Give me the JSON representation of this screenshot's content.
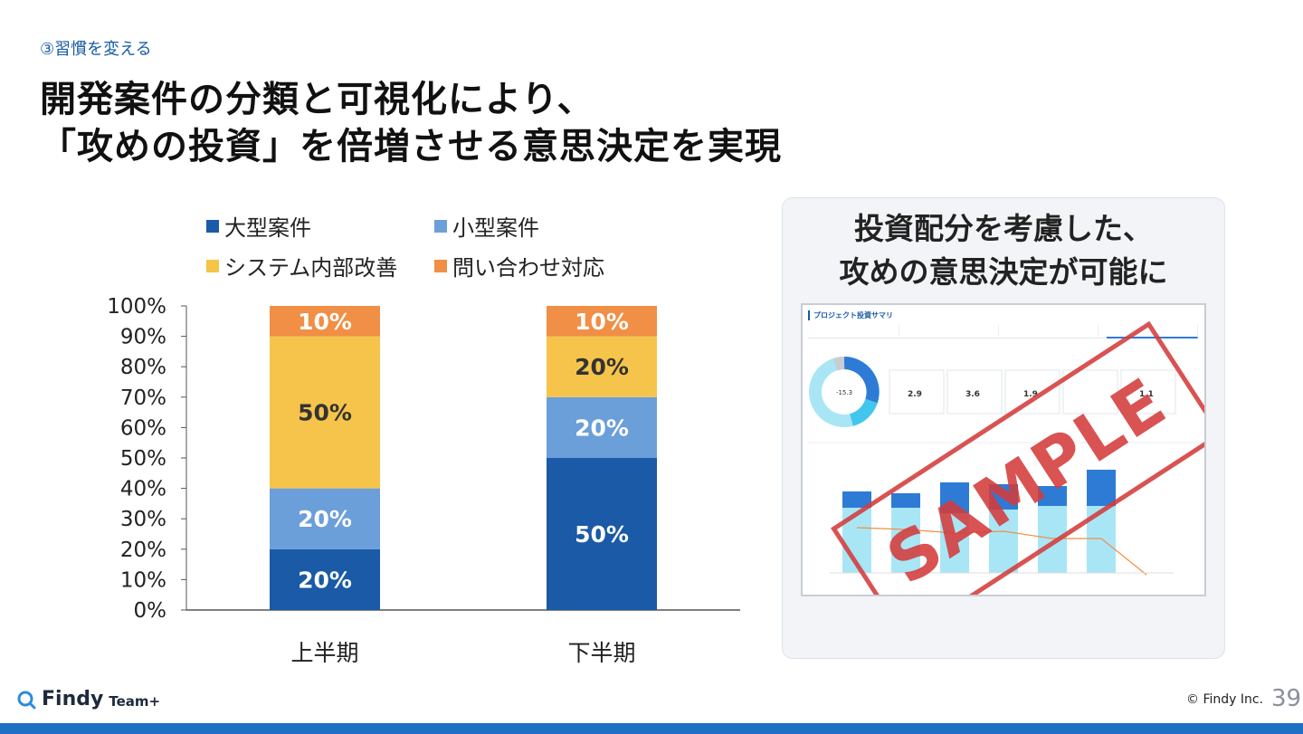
{
  "header": {
    "section_label": "③習慣を変える",
    "title_line1": "開発案件の分類と可視化により、",
    "title_line2": "「攻めの投資」を倍増させる意思決定を実現"
  },
  "chart_data": {
    "type": "bar",
    "stacked": true,
    "percent": true,
    "categories": [
      "上半期",
      "下半期"
    ],
    "series": [
      {
        "name": "大型案件",
        "values": [
          20,
          50
        ],
        "color": "#1a5aa6"
      },
      {
        "name": "小型案件",
        "values": [
          20,
          20
        ],
        "color": "#6b9fd9"
      },
      {
        "name": "システム内部改善",
        "values": [
          50,
          20
        ],
        "color": "#f6c44b"
      },
      {
        "name": "問い合わせ対応",
        "values": [
          10,
          10
        ],
        "color": "#f08f45"
      }
    ],
    "ylim": [
      0,
      100
    ],
    "yticks": [
      0,
      10,
      20,
      30,
      40,
      50,
      60,
      70,
      80,
      90,
      100
    ],
    "ytick_labels": [
      "0%",
      "10%",
      "20%",
      "30%",
      "40%",
      "50%",
      "60%",
      "70%",
      "80%",
      "90%",
      "100%"
    ],
    "data_labels": [
      [
        "20%",
        "50%"
      ],
      [
        "20%",
        "20%"
      ],
      [
        "50%",
        "20%"
      ],
      [
        "10%",
        "10%"
      ]
    ],
    "legend_position": "top",
    "grid": false
  },
  "panel": {
    "title_line1": "投資配分を考慮した、",
    "title_line2": "攻めの意思決定が可能に",
    "screenshot_title": "プロジェクト投資サマリ",
    "stamp_text": "SAMPLE"
  },
  "footer": {
    "logo_text": "Findy",
    "logo_sub": "Team+",
    "copyright": "© Findy Inc.",
    "page_number": "39"
  },
  "colors": {
    "accent": "#1a5aa6",
    "bottom_bar": "#1f6fc4",
    "stamp": "#d43c3c"
  }
}
